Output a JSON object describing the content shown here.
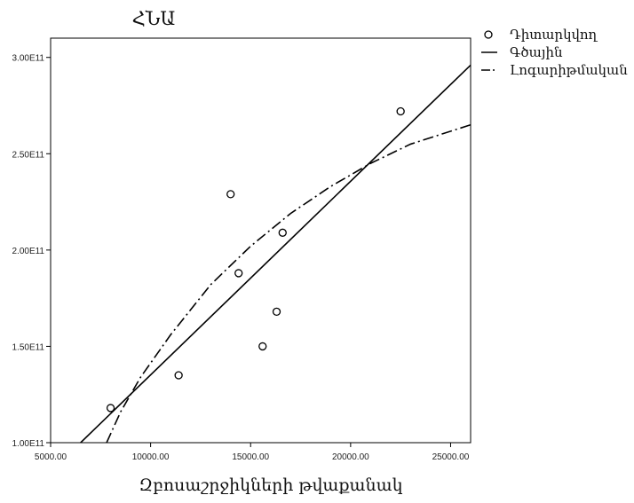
{
  "chart_data": {
    "type": "scatter",
    "title": "ՀՆԱ",
    "xlabel": "Զբոսաշրջիկների թվաքանակ",
    "ylabel": "",
    "xlim": [
      5000,
      26000
    ],
    "ylim": [
      100000000000,
      310000000000
    ],
    "x_ticks": [
      5000,
      10000,
      15000,
      20000,
      25000
    ],
    "x_tick_labels": [
      "5000.00",
      "10000.00",
      "15000.00",
      "20000.00",
      "25000.00"
    ],
    "y_ticks": [
      100000000000,
      150000000000,
      200000000000,
      250000000000,
      300000000000
    ],
    "y_tick_labels": [
      "1.00E11",
      "1.50E11",
      "2.00E11",
      "2.50E11",
      "3.00E11"
    ],
    "grid": false,
    "legend_position": "outside-top-right",
    "series": [
      {
        "name": "Դիտարկվող",
        "kind": "points",
        "x": [
          8000,
          11400,
          14000,
          14400,
          15600,
          16300,
          16600,
          22500
        ],
        "y": [
          118000000000,
          135000000000,
          229000000000,
          188000000000,
          150000000000,
          168000000000,
          209000000000,
          272000000000
        ]
      },
      {
        "name": "Գծային",
        "kind": "linear-fit",
        "x": [
          6500,
          26000
        ],
        "y": [
          100000000000,
          296000000000
        ]
      },
      {
        "name": "Լոգարիթմական",
        "kind": "logarithmic-fit",
        "x": [
          7800,
          8500,
          9500,
          11000,
          13000,
          15000,
          17000,
          19000,
          21000,
          23000,
          26000
        ],
        "y": [
          100000000000,
          116000000000,
          134000000000,
          156000000000,
          182000000000,
          202000000000,
          219000000000,
          233000000000,
          245000000000,
          255000000000,
          265000000000
        ]
      }
    ],
    "colors": {
      "ink": "#000000",
      "text": "#111111"
    }
  }
}
